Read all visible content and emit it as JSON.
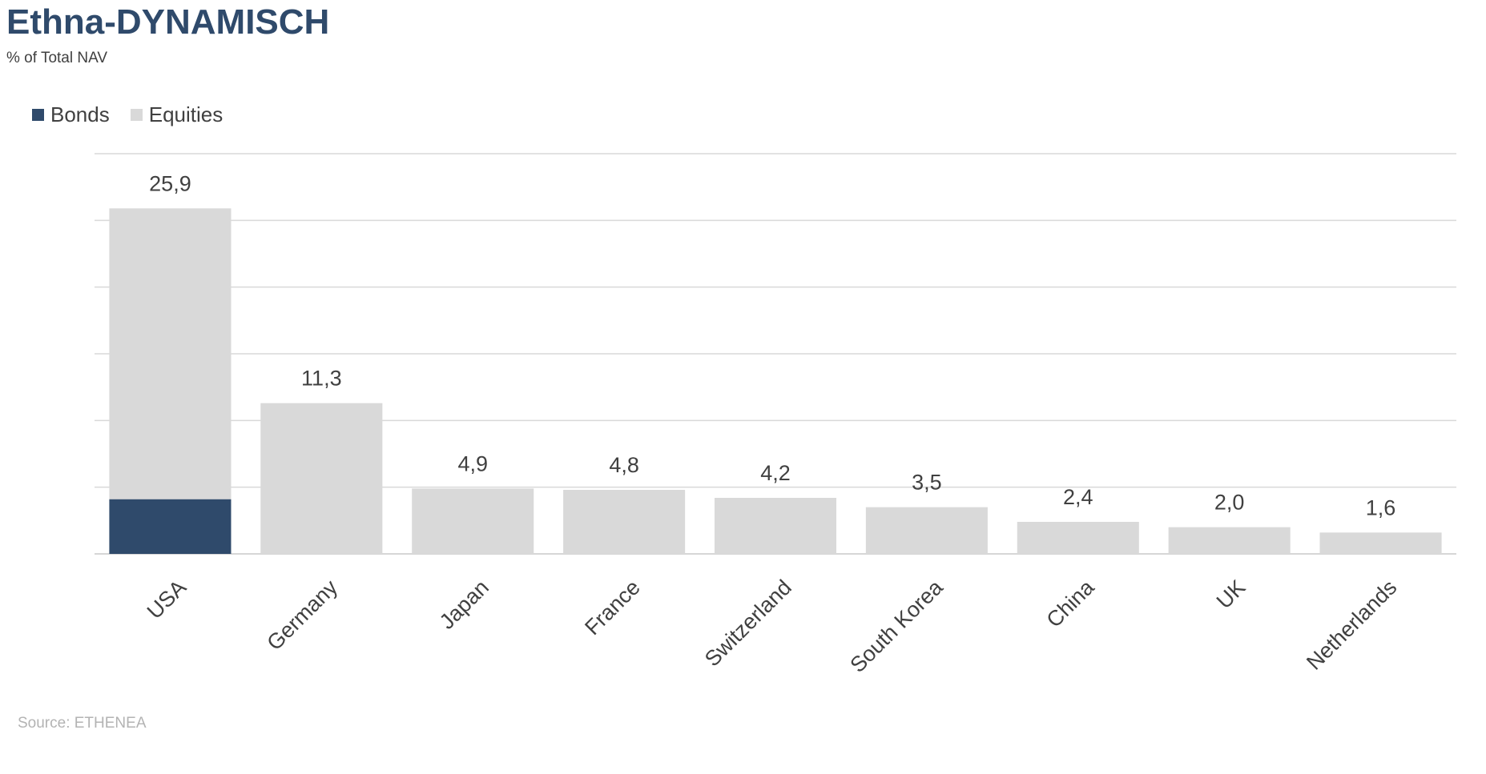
{
  "title": "Ethna-DYNAMISCH",
  "subtitle": "% of Total NAV",
  "source": "Source: ETHENEA",
  "legend": [
    {
      "label": "Bonds",
      "color": "#2f4a6b"
    },
    {
      "label": "Equities",
      "color": "#d9d9d9"
    }
  ],
  "chart_data": {
    "type": "bar",
    "stacked": true,
    "categories": [
      "USA",
      "Germany",
      "Japan",
      "France",
      "Switzerland",
      "South Korea",
      "China",
      "UK",
      "Netherlands"
    ],
    "series": [
      {
        "name": "Bonds",
        "color": "#2f4a6b",
        "values": [
          4.1,
          0,
          0,
          0,
          0,
          0,
          0,
          0,
          0
        ]
      },
      {
        "name": "Equities",
        "color": "#d9d9d9",
        "values": [
          21.8,
          11.3,
          4.9,
          4.8,
          4.2,
          3.5,
          2.4,
          2.0,
          1.6
        ]
      }
    ],
    "totals": [
      "25,9",
      "11,3",
      "4,9",
      "4,8",
      "4,2",
      "3,5",
      "2,4",
      "2,0",
      "1,6"
    ],
    "ylim": [
      0,
      30
    ],
    "gridlines": true,
    "legend_position": "top-left",
    "xlabel": "",
    "ylabel": ""
  }
}
